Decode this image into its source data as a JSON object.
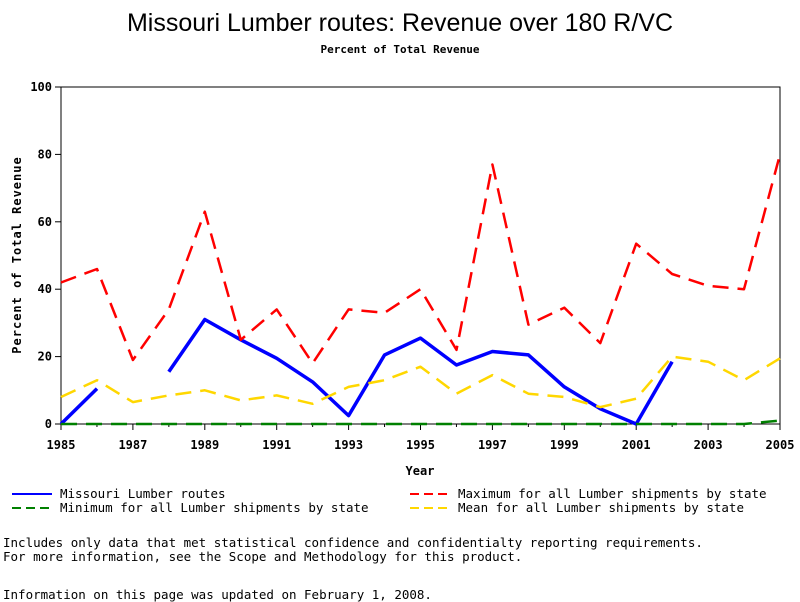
{
  "chart_data": {
    "type": "line",
    "title": "Missouri Lumber routes: Revenue over 180 R/VC",
    "subtitle": "Percent of Total Revenue",
    "xlabel": "Year",
    "ylabel": "Percent of Total Revenue",
    "xlim": [
      1985,
      2005
    ],
    "ylim": [
      0,
      100
    ],
    "x_ticks": [
      "1985",
      "1987",
      "1989",
      "1991",
      "1993",
      "1995",
      "1997",
      "1999",
      "2001",
      "2003",
      "2005"
    ],
    "y_ticks": [
      "0",
      "20",
      "40",
      "60",
      "80",
      "100"
    ],
    "x": [
      1985,
      1986,
      1987,
      1988,
      1989,
      1990,
      1991,
      1992,
      1993,
      1994,
      1995,
      1996,
      1997,
      1998,
      1999,
      2000,
      2001,
      2002,
      2003,
      2004,
      2005
    ],
    "series": [
      {
        "name": "Missouri Lumber routes",
        "color": "#0000ff",
        "dash": "solid",
        "values": [
          0,
          10.5,
          null,
          15.5,
          31,
          25,
          19.5,
          12.5,
          2.5,
          20.5,
          25.5,
          17.5,
          21.5,
          20.5,
          11,
          4.5,
          0,
          18.5,
          null,
          null,
          null
        ]
      },
      {
        "name": "Maximum for all Lumber shipments by state",
        "color": "#ff0000",
        "dash": "dashed",
        "values": [
          42,
          46,
          19,
          34,
          63,
          25,
          34,
          18,
          34,
          33,
          40,
          22,
          77,
          29.5,
          34.5,
          24,
          53.5,
          44.5,
          41,
          40,
          80
        ]
      },
      {
        "name": "Minimum for all Lumber shipments by state",
        "color": "#008000",
        "dash": "dashed",
        "values": [
          0,
          0,
          0,
          0,
          0,
          0,
          0,
          0,
          0,
          0,
          0,
          0,
          0,
          0,
          0,
          0,
          0,
          0,
          0,
          0,
          1
        ]
      },
      {
        "name": "Mean for all Lumber shipments by state",
        "color": "#ffd700",
        "dash": "dashed",
        "values": [
          8,
          13,
          6.5,
          8.5,
          10,
          7,
          8.5,
          6,
          11,
          13,
          17,
          9,
          14.5,
          9,
          8,
          5,
          7.5,
          20,
          18.5,
          13,
          19.5
        ]
      }
    ],
    "legend_position": "bottom"
  },
  "notes": {
    "line1": "Includes only data that met statistical confidence and confidentialty reporting requirements.",
    "line2": "For more information, see the Scope and Methodology for this product.",
    "line3": "Information on this page was updated on February 1, 2008."
  }
}
